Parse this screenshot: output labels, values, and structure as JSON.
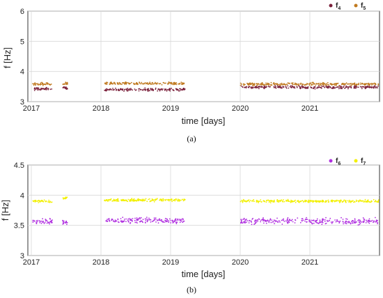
{
  "chart_data": [
    {
      "type": "scatter",
      "panel_caption": "(a)",
      "xlabel": "time [days]",
      "ylabel": "f [Hz]",
      "x_tick_labels": [
        "2017",
        "2018",
        "2019",
        "2020",
        "2021"
      ],
      "x_ticks": [
        2017,
        2018,
        2019,
        2020,
        2021
      ],
      "xlim": [
        2016.95,
        2022.0
      ],
      "ylim": [
        3,
        6
      ],
      "y_ticks": [
        3,
        4,
        5,
        6
      ],
      "grid": true,
      "legend_placement": "top-right",
      "gaps": [
        [
          2017.35,
          2017.45
        ],
        [
          2017.55,
          2018.05
        ],
        [
          2019.2,
          2020.0
        ]
      ],
      "series": [
        {
          "name": "f4",
          "legend_main": "f",
          "legend_sub": "4",
          "color": "#7a1f3a",
          "segments": [
            {
              "x": [
                2017.02,
                2017.3
              ],
              "y": 3.42
            },
            {
              "x": [
                2017.45,
                2017.52
              ],
              "y": 3.45
            },
            {
              "x": [
                2018.05,
                2019.22
              ],
              "y": 3.4
            },
            {
              "x": [
                2020.0,
                2021.99
              ],
              "y": 3.48
            }
          ]
        },
        {
          "name": "f5",
          "legend_main": "f",
          "legend_sub": "5",
          "color": "#c07a20",
          "segments": [
            {
              "x": [
                2017.02,
                2017.3
              ],
              "y": 3.58
            },
            {
              "x": [
                2017.45,
                2017.52
              ],
              "y": 3.6
            },
            {
              "x": [
                2018.05,
                2019.22
              ],
              "y": 3.6
            },
            {
              "x": [
                2020.0,
                2021.99
              ],
              "y": 3.58
            }
          ]
        }
      ]
    },
    {
      "type": "scatter",
      "panel_caption": "(b)",
      "xlabel": "time [days]",
      "ylabel": "f [Hz]",
      "x_tick_labels": [
        "2017",
        "2018",
        "2019",
        "2020",
        "2021"
      ],
      "x_ticks": [
        2017,
        2018,
        2019,
        2020,
        2021
      ],
      "xlim": [
        2016.95,
        2022.0
      ],
      "ylim": [
        3,
        4.5
      ],
      "y_tick_labels": [
        "3",
        "3.5",
        "4",
        "4.5"
      ],
      "y_ticks": [
        3,
        3.5,
        4,
        4.5
      ],
      "grid": true,
      "legend_placement": "top-right",
      "series": [
        {
          "name": "f6",
          "legend_main": "f",
          "legend_sub": "6",
          "color": "#b030e0",
          "segments": [
            {
              "x": [
                2017.02,
                2017.3
              ],
              "y": 3.57
            },
            {
              "x": [
                2017.45,
                2017.52
              ],
              "y": 3.55
            },
            {
              "x": [
                2018.05,
                2019.22
              ],
              "y": 3.58
            },
            {
              "x": [
                2020.0,
                2021.99
              ],
              "y": 3.57
            }
          ]
        },
        {
          "name": "f7",
          "legend_main": "f",
          "legend_sub": "7",
          "color": "#f2f000",
          "segments": [
            {
              "x": [
                2017.02,
                2017.3
              ],
              "y": 3.9
            },
            {
              "x": [
                2017.45,
                2017.52
              ],
              "y": 3.95
            },
            {
              "x": [
                2018.05,
                2019.22
              ],
              "y": 3.92
            },
            {
              "x": [
                2020.0,
                2021.99
              ],
              "y": 3.9
            }
          ]
        }
      ]
    }
  ]
}
